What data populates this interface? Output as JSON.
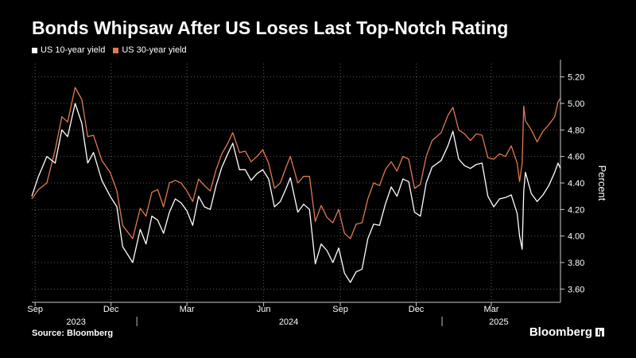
{
  "title": "Bonds Whipsaw After US Loses Last Top-Notch Rating",
  "source": "Source: Bloomberg",
  "brand": "Bloomberg",
  "colors": {
    "ten_year": "#ffffff",
    "thirty_year": "#e07a4d",
    "grid": "#5a5a5a",
    "axis": "#cccccc"
  },
  "chart_data": {
    "type": "line",
    "title": "Bonds Whipsaw After US Loses Last Top-Notch Rating",
    "ylabel": "Percent",
    "xlabel": "",
    "ylim": [
      3.5,
      5.3
    ],
    "y_ticks": [
      "5.20",
      "5.00",
      "4.80",
      "4.60",
      "4.40",
      "4.20",
      "4.00",
      "3.80",
      "3.60"
    ],
    "y_tick_values": [
      5.2,
      5.0,
      4.8,
      4.6,
      4.4,
      4.2,
      4.0,
      3.8,
      3.6
    ],
    "xlim": [
      "2023-08-28",
      "2025-05-23"
    ],
    "x_ticks": [
      {
        "label": "Sep",
        "date": "2023-09-01"
      },
      {
        "label": "Dec",
        "date": "2023-12-01"
      },
      {
        "label": "Mar",
        "date": "2024-03-01"
      },
      {
        "label": "Jun",
        "date": "2024-06-01"
      },
      {
        "label": "Sep",
        "date": "2024-09-01"
      },
      {
        "label": "Dec",
        "date": "2024-12-01"
      },
      {
        "label": "Mar",
        "date": "2025-03-01"
      }
    ],
    "year_labels": [
      {
        "label": "2023",
        "date": "2023-10-20"
      },
      {
        "label": "2024",
        "date": "2024-07-01"
      },
      {
        "label": "2025",
        "date": "2025-03-10"
      }
    ],
    "year_dividers": [
      "2024-01-01",
      "2025-01-01"
    ],
    "grid": true,
    "legend_position": "top-left",
    "series": [
      {
        "name": "US 10-year yield",
        "color": "#ffffff",
        "points": [
          [
            "2023-08-28",
            4.3
          ],
          [
            "2023-09-05",
            4.45
          ],
          [
            "2023-09-15",
            4.6
          ],
          [
            "2023-09-25",
            4.55
          ],
          [
            "2023-10-03",
            4.8
          ],
          [
            "2023-10-10",
            4.75
          ],
          [
            "2023-10-19",
            5.0
          ],
          [
            "2023-10-27",
            4.85
          ],
          [
            "2023-11-03",
            4.55
          ],
          [
            "2023-11-10",
            4.63
          ],
          [
            "2023-11-20",
            4.42
          ],
          [
            "2023-11-30",
            4.3
          ],
          [
            "2023-12-08",
            4.22
          ],
          [
            "2023-12-15",
            3.92
          ],
          [
            "2023-12-27",
            3.8
          ],
          [
            "2024-01-05",
            4.05
          ],
          [
            "2024-01-12",
            3.94
          ],
          [
            "2024-01-19",
            4.15
          ],
          [
            "2024-01-26",
            4.12
          ],
          [
            "2024-02-02",
            4.02
          ],
          [
            "2024-02-09",
            4.18
          ],
          [
            "2024-02-16",
            4.28
          ],
          [
            "2024-02-23",
            4.25
          ],
          [
            "2024-03-01",
            4.19
          ],
          [
            "2024-03-08",
            4.08
          ],
          [
            "2024-03-15",
            4.3
          ],
          [
            "2024-03-22",
            4.22
          ],
          [
            "2024-03-29",
            4.2
          ],
          [
            "2024-04-05",
            4.38
          ],
          [
            "2024-04-12",
            4.52
          ],
          [
            "2024-04-19",
            4.62
          ],
          [
            "2024-04-25",
            4.7
          ],
          [
            "2024-05-03",
            4.5
          ],
          [
            "2024-05-10",
            4.5
          ],
          [
            "2024-05-17",
            4.42
          ],
          [
            "2024-05-24",
            4.47
          ],
          [
            "2024-05-31",
            4.5
          ],
          [
            "2024-06-07",
            4.43
          ],
          [
            "2024-06-14",
            4.22
          ],
          [
            "2024-06-21",
            4.26
          ],
          [
            "2024-06-28",
            4.36
          ],
          [
            "2024-07-03",
            4.44
          ],
          [
            "2024-07-12",
            4.18
          ],
          [
            "2024-07-19",
            4.24
          ],
          [
            "2024-07-26",
            4.2
          ],
          [
            "2024-08-02",
            3.79
          ],
          [
            "2024-08-09",
            3.94
          ],
          [
            "2024-08-16",
            3.89
          ],
          [
            "2024-08-23",
            3.8
          ],
          [
            "2024-08-30",
            3.91
          ],
          [
            "2024-09-06",
            3.72
          ],
          [
            "2024-09-13",
            3.65
          ],
          [
            "2024-09-20",
            3.73
          ],
          [
            "2024-09-27",
            3.75
          ],
          [
            "2024-10-04",
            3.98
          ],
          [
            "2024-10-11",
            4.09
          ],
          [
            "2024-10-18",
            4.08
          ],
          [
            "2024-10-25",
            4.24
          ],
          [
            "2024-11-01",
            4.37
          ],
          [
            "2024-11-08",
            4.3
          ],
          [
            "2024-11-15",
            4.43
          ],
          [
            "2024-11-22",
            4.41
          ],
          [
            "2024-11-29",
            4.18
          ],
          [
            "2024-12-06",
            4.15
          ],
          [
            "2024-12-13",
            4.4
          ],
          [
            "2024-12-20",
            4.52
          ],
          [
            "2024-12-31",
            4.57
          ],
          [
            "2025-01-08",
            4.68
          ],
          [
            "2025-01-14",
            4.79
          ],
          [
            "2025-01-21",
            4.58
          ],
          [
            "2025-01-28",
            4.53
          ],
          [
            "2025-02-04",
            4.51
          ],
          [
            "2025-02-11",
            4.54
          ],
          [
            "2025-02-18",
            4.55
          ],
          [
            "2025-02-25",
            4.3
          ],
          [
            "2025-03-04",
            4.22
          ],
          [
            "2025-03-11",
            4.28
          ],
          [
            "2025-03-18",
            4.29
          ],
          [
            "2025-03-25",
            4.31
          ],
          [
            "2025-04-01",
            4.17
          ],
          [
            "2025-04-04",
            4.0
          ],
          [
            "2025-04-07",
            3.9
          ],
          [
            "2025-04-09",
            4.34
          ],
          [
            "2025-04-11",
            4.48
          ],
          [
            "2025-04-18",
            4.32
          ],
          [
            "2025-04-25",
            4.26
          ],
          [
            "2025-05-02",
            4.31
          ],
          [
            "2025-05-09",
            4.38
          ],
          [
            "2025-05-16",
            4.48
          ],
          [
            "2025-05-20",
            4.55
          ],
          [
            "2025-05-23",
            4.51
          ]
        ]
      },
      {
        "name": "US 30-year yield",
        "color": "#e07a4d",
        "points": [
          [
            "2023-08-28",
            4.28
          ],
          [
            "2023-09-05",
            4.35
          ],
          [
            "2023-09-15",
            4.4
          ],
          [
            "2023-09-25",
            4.65
          ],
          [
            "2023-10-03",
            4.9
          ],
          [
            "2023-10-10",
            4.86
          ],
          [
            "2023-10-19",
            5.12
          ],
          [
            "2023-10-27",
            5.03
          ],
          [
            "2023-11-03",
            4.75
          ],
          [
            "2023-11-10",
            4.76
          ],
          [
            "2023-11-20",
            4.57
          ],
          [
            "2023-11-30",
            4.48
          ],
          [
            "2023-12-08",
            4.34
          ],
          [
            "2023-12-15",
            4.08
          ],
          [
            "2023-12-27",
            3.98
          ],
          [
            "2024-01-05",
            4.21
          ],
          [
            "2024-01-12",
            4.15
          ],
          [
            "2024-01-19",
            4.33
          ],
          [
            "2024-01-26",
            4.35
          ],
          [
            "2024-02-02",
            4.22
          ],
          [
            "2024-02-09",
            4.4
          ],
          [
            "2024-02-16",
            4.42
          ],
          [
            "2024-02-23",
            4.4
          ],
          [
            "2024-03-01",
            4.34
          ],
          [
            "2024-03-08",
            4.26
          ],
          [
            "2024-03-15",
            4.43
          ],
          [
            "2024-03-22",
            4.38
          ],
          [
            "2024-03-29",
            4.34
          ],
          [
            "2024-04-05",
            4.5
          ],
          [
            "2024-04-12",
            4.62
          ],
          [
            "2024-04-19",
            4.7
          ],
          [
            "2024-04-25",
            4.78
          ],
          [
            "2024-05-03",
            4.63
          ],
          [
            "2024-05-10",
            4.64
          ],
          [
            "2024-05-17",
            4.56
          ],
          [
            "2024-05-24",
            4.6
          ],
          [
            "2024-05-31",
            4.65
          ],
          [
            "2024-06-07",
            4.55
          ],
          [
            "2024-06-14",
            4.36
          ],
          [
            "2024-06-21",
            4.4
          ],
          [
            "2024-06-28",
            4.52
          ],
          [
            "2024-07-03",
            4.6
          ],
          [
            "2024-07-12",
            4.4
          ],
          [
            "2024-07-19",
            4.45
          ],
          [
            "2024-07-26",
            4.45
          ],
          [
            "2024-08-02",
            4.11
          ],
          [
            "2024-08-09",
            4.23
          ],
          [
            "2024-08-16",
            4.14
          ],
          [
            "2024-08-23",
            4.1
          ],
          [
            "2024-08-30",
            4.2
          ],
          [
            "2024-09-06",
            4.02
          ],
          [
            "2024-09-13",
            3.98
          ],
          [
            "2024-09-20",
            4.09
          ],
          [
            "2024-09-27",
            4.1
          ],
          [
            "2024-10-04",
            4.28
          ],
          [
            "2024-10-11",
            4.4
          ],
          [
            "2024-10-18",
            4.38
          ],
          [
            "2024-10-25",
            4.5
          ],
          [
            "2024-11-01",
            4.56
          ],
          [
            "2024-11-08",
            4.49
          ],
          [
            "2024-11-15",
            4.6
          ],
          [
            "2024-11-22",
            4.58
          ],
          [
            "2024-11-29",
            4.36
          ],
          [
            "2024-12-06",
            4.39
          ],
          [
            "2024-12-13",
            4.6
          ],
          [
            "2024-12-20",
            4.72
          ],
          [
            "2024-12-31",
            4.78
          ],
          [
            "2025-01-08",
            4.91
          ],
          [
            "2025-01-14",
            4.97
          ],
          [
            "2025-01-21",
            4.8
          ],
          [
            "2025-01-28",
            4.77
          ],
          [
            "2025-02-04",
            4.72
          ],
          [
            "2025-02-11",
            4.77
          ],
          [
            "2025-02-18",
            4.76
          ],
          [
            "2025-02-25",
            4.59
          ],
          [
            "2025-03-04",
            4.58
          ],
          [
            "2025-03-11",
            4.62
          ],
          [
            "2025-03-18",
            4.6
          ],
          [
            "2025-03-25",
            4.68
          ],
          [
            "2025-04-01",
            4.55
          ],
          [
            "2025-04-04",
            4.41
          ],
          [
            "2025-04-07",
            4.55
          ],
          [
            "2025-04-09",
            4.98
          ],
          [
            "2025-04-11",
            4.87
          ],
          [
            "2025-04-18",
            4.8
          ],
          [
            "2025-04-25",
            4.71
          ],
          [
            "2025-05-02",
            4.79
          ],
          [
            "2025-05-09",
            4.84
          ],
          [
            "2025-05-16",
            4.9
          ],
          [
            "2025-05-20",
            5.01
          ],
          [
            "2025-05-23",
            5.04
          ]
        ]
      }
    ]
  }
}
